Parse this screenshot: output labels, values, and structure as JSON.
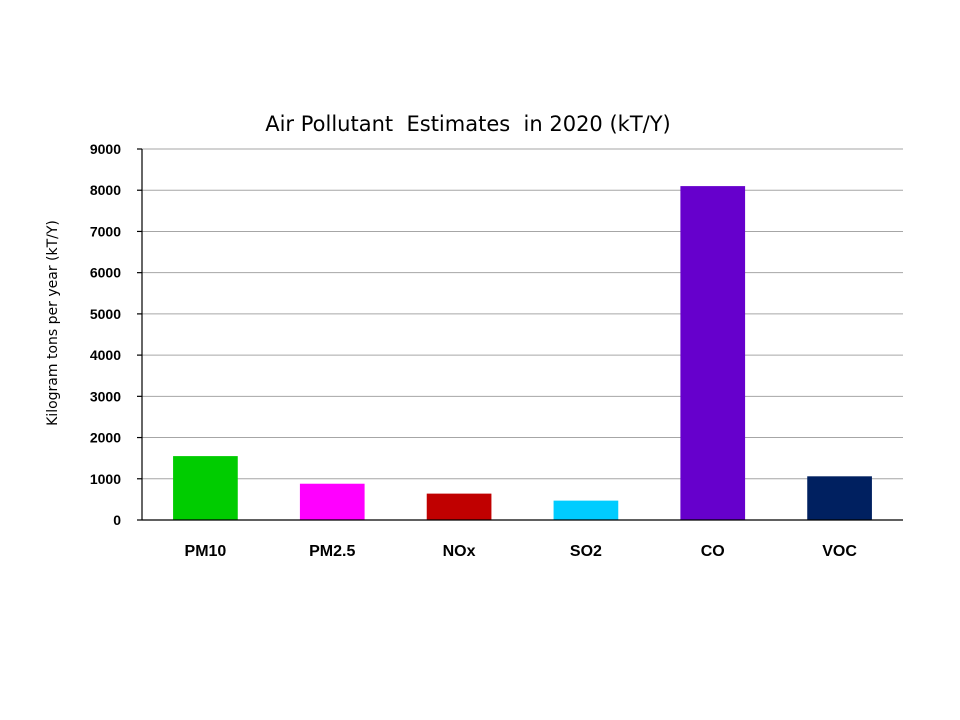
{
  "chart_data": {
    "type": "bar",
    "title": "Air Pollutant  Estimates  in 2020 (kT/Y)",
    "xlabel": "",
    "ylabel": "Kilogram tons per year (kT/Y)",
    "categories": [
      "PM10",
      "PM2.5",
      "NOx",
      "SO2",
      "CO",
      "VOC"
    ],
    "values": [
      1550,
      880,
      640,
      470,
      8100,
      1060
    ],
    "colors": [
      "#00cc00",
      "#ff00ff",
      "#c00000",
      "#00ccff",
      "#6600cc",
      "#002060"
    ],
    "ylim": [
      0,
      9000
    ],
    "yticks": [
      "0",
      "1000",
      "2000",
      "3000",
      "4000",
      "5000",
      "6000",
      "7000",
      "8000",
      "9000"
    ],
    "grid": true,
    "legend": "none"
  }
}
